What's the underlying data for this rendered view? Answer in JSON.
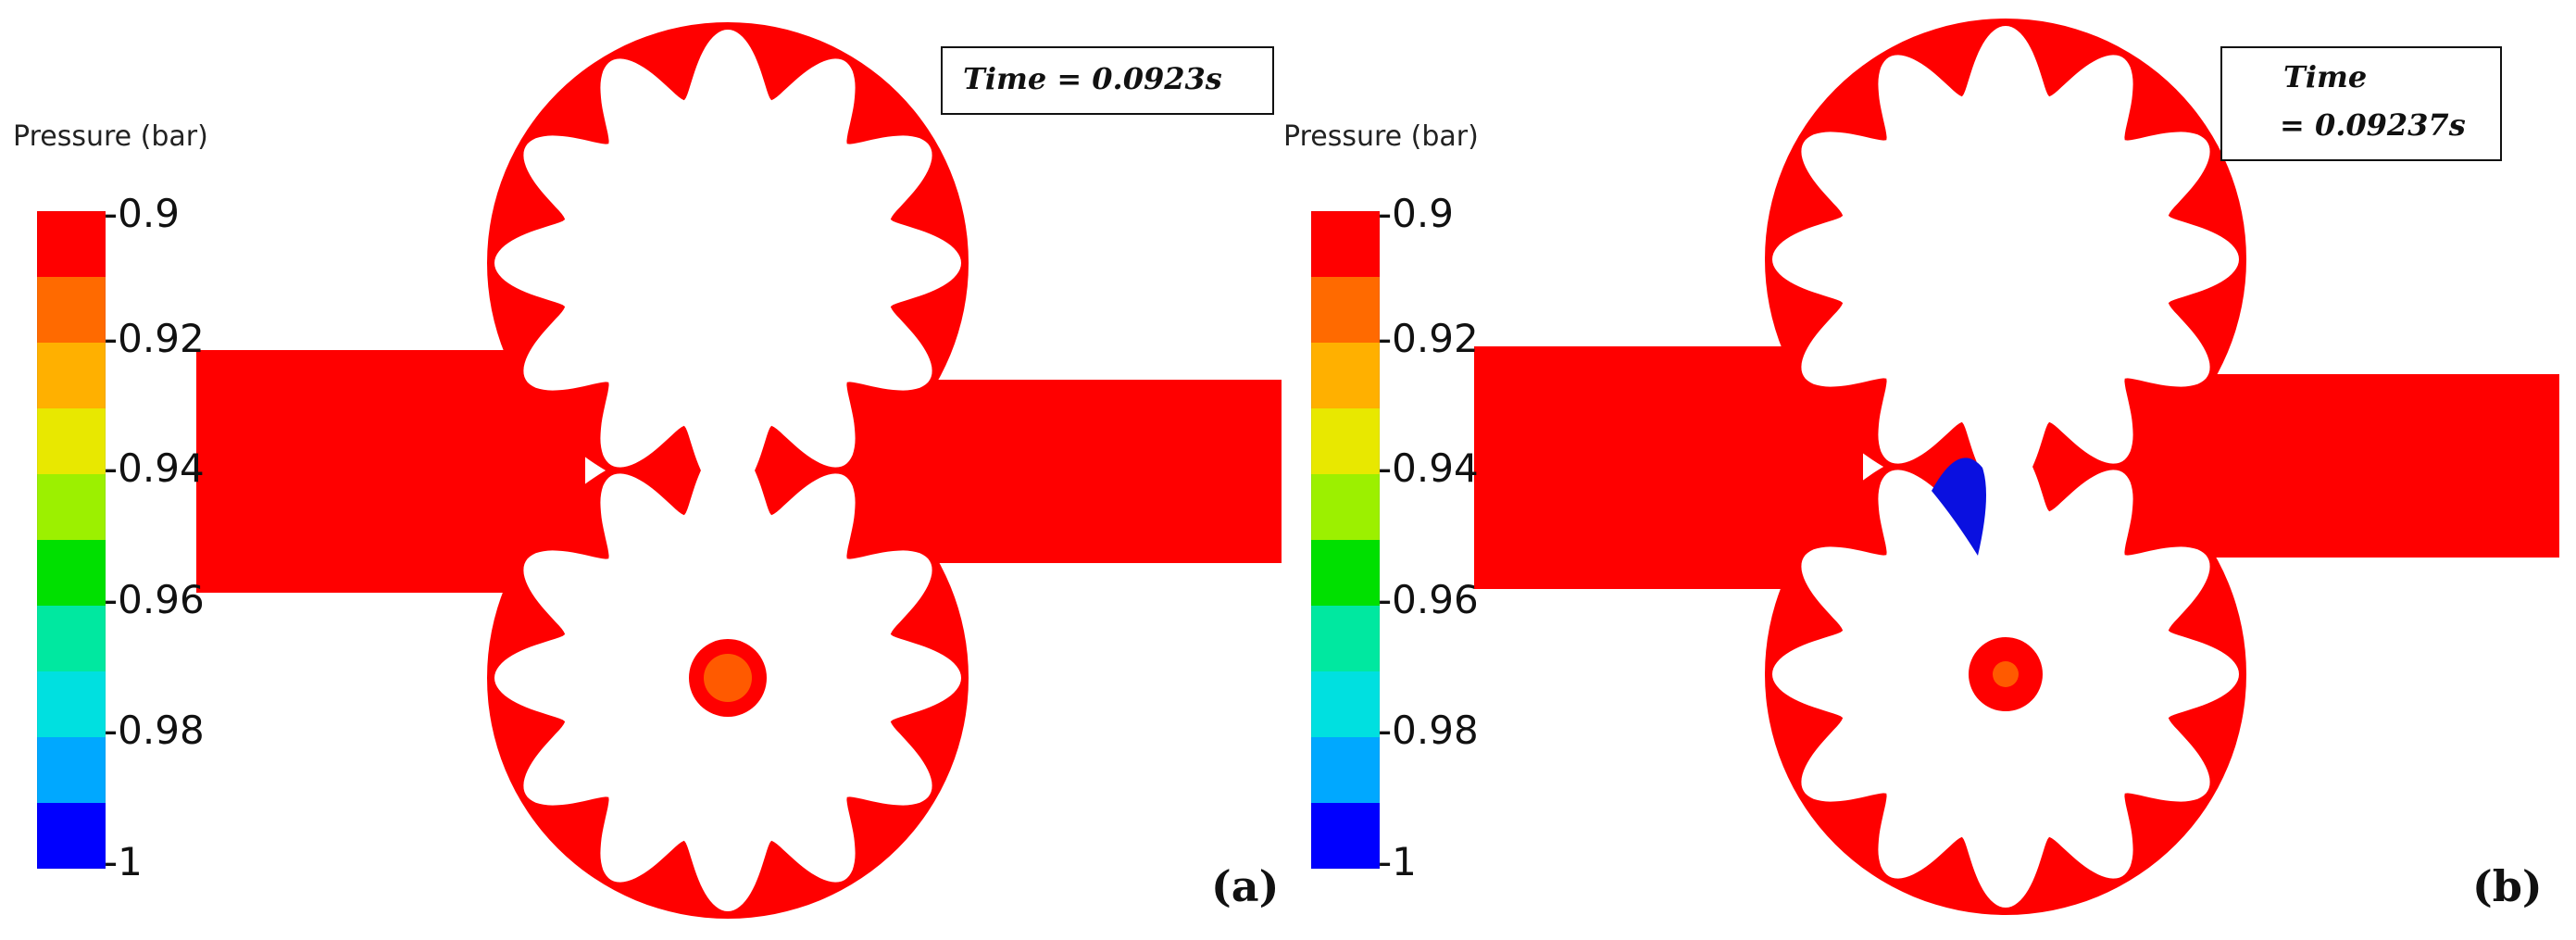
{
  "legend": {
    "title": "Pressure (bar)",
    "ticks": [
      "-0.9",
      "-0.92",
      "-0.94",
      "-0.96",
      "-0.98",
      "-1"
    ]
  },
  "panels": [
    {
      "label": "(a)",
      "time_label": "Time = 0.0923s",
      "time_line1": "Time = 0.0923s",
      "time_line2": "",
      "cavitation_region": false
    },
    {
      "label": "(b)",
      "time_label": "Time = 0.09237s",
      "time_line1": "Time",
      "time_line2": "= 0.09237s",
      "cavitation_region": true
    }
  ],
  "colors": {
    "fluid_high": "#ff0000",
    "shaft_ring": "#ff0000",
    "shaft_core": "#ff5a00",
    "cavitation": "#0a10e0",
    "colormap": [
      "#ff0000",
      "#ff6a00",
      "#ffb000",
      "#e8e800",
      "#9cf000",
      "#00e000",
      "#00e8a0",
      "#00e0e0",
      "#00a8ff",
      "#0000ff"
    ]
  }
}
